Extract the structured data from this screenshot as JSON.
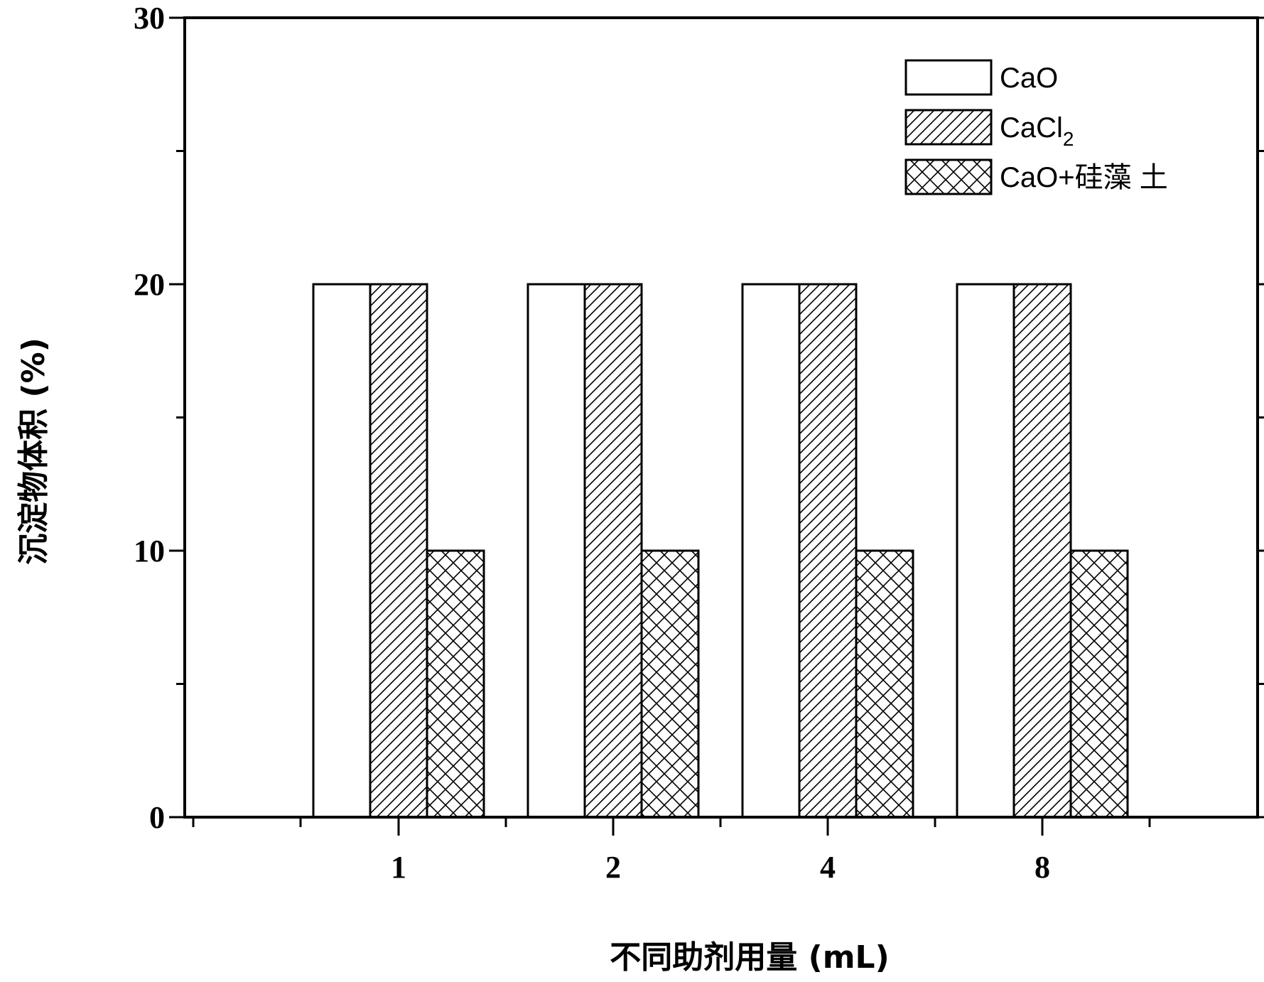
{
  "chart_data": {
    "type": "bar",
    "categories": [
      "1",
      "2",
      "4",
      "8"
    ],
    "series": [
      {
        "name": "CaO",
        "pattern": "none",
        "values": [
          20,
          20,
          20,
          20
        ]
      },
      {
        "name": "CaCl2",
        "name_main": "CaCl",
        "name_sub": "2",
        "pattern": "diagonal",
        "values": [
          20,
          20,
          20,
          20
        ]
      },
      {
        "name": "CaO+硅藻 土",
        "pattern": "crosshatch",
        "values": [
          10,
          10,
          10,
          10
        ]
      }
    ],
    "xlabel": "不同助剂用量 (mL)",
    "ylabel": "沉淀物体积 (%)",
    "ylim": [
      0,
      30
    ],
    "yticks": [
      "0",
      "10",
      "20",
      "30"
    ],
    "legend_position": "top-right",
    "grid": false,
    "colors": {
      "stroke": "#000000",
      "fill": "#ffffff"
    }
  }
}
